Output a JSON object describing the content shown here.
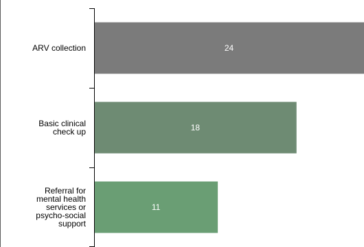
{
  "chart_data": {
    "type": "bar",
    "orientation": "horizontal",
    "categories": [
      [
        "ARV collection"
      ],
      [
        "Basic clinical",
        "check up"
      ],
      [
        "Referral for",
        "mental health",
        "services or",
        "psycho-social",
        "support"
      ]
    ],
    "values": [
      24,
      18,
      11
    ],
    "data_labels": [
      "24",
      "18",
      "11"
    ],
    "colors": [
      "#7b7b7b",
      "#6e8b73",
      "#6a9e74"
    ],
    "label_color": "#ffffff",
    "axis_color": "#000000",
    "xlim": [
      0,
      24
    ],
    "grid": false,
    "legend": "none"
  }
}
